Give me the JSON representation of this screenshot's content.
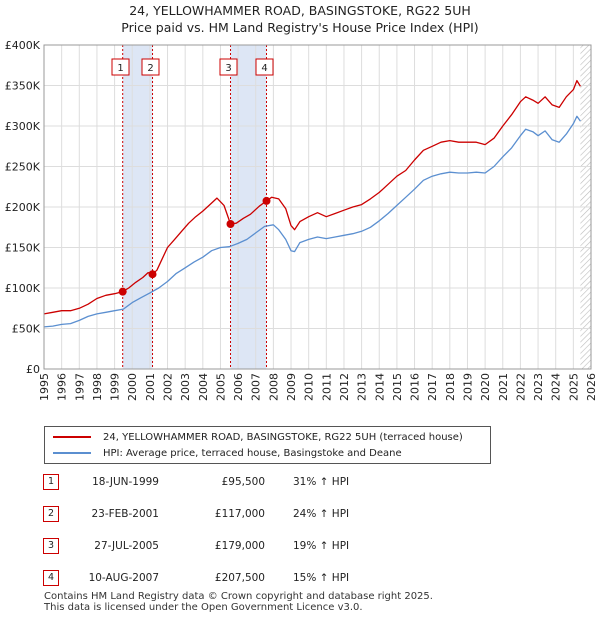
{
  "title": {
    "line1": "24, YELLOWHAMMER ROAD, BASINGSTOKE, RG22 5UH",
    "line2": "Price paid vs. HM Land Registry's House Price Index (HPI)"
  },
  "chart_data": {
    "type": "line",
    "xlim": [
      1995,
      2026
    ],
    "ylim": [
      0,
      400000
    ],
    "y_ticks": [
      0,
      50000,
      100000,
      150000,
      200000,
      250000,
      300000,
      350000,
      400000
    ],
    "y_tick_labels": [
      "£0",
      "£50K",
      "£100K",
      "£150K",
      "£200K",
      "£250K",
      "£300K",
      "£350K",
      "£400K"
    ],
    "x_ticks": [
      1995,
      1996,
      1997,
      1998,
      1999,
      2000,
      2001,
      2002,
      2003,
      2004,
      2005,
      2006,
      2007,
      2008,
      2009,
      2010,
      2011,
      2012,
      2013,
      2014,
      2015,
      2016,
      2017,
      2018,
      2019,
      2020,
      2021,
      2022,
      2023,
      2024,
      2025,
      2026
    ],
    "grid": true,
    "colors": {
      "property": "#cc0000",
      "hpi": "#5b8fd0",
      "shade": "#dde6f5",
      "hatch": "#bbbbbb"
    },
    "series": [
      {
        "name": "24, YELLOWHAMMER ROAD, BASINGSTOKE, RG22 5UH (terraced house)",
        "x": [
          1995.0,
          1995.5,
          1996.0,
          1996.5,
          1997.0,
          1997.5,
          1998.0,
          1998.5,
          1999.0,
          1999.46,
          1999.8,
          2000.2,
          2000.6,
          2000.9,
          2001.15,
          2001.4,
          2001.7,
          2002.0,
          2002.4,
          2002.8,
          2003.2,
          2003.6,
          2004.0,
          2004.4,
          2004.8,
          2005.2,
          2005.57,
          2005.9,
          2006.3,
          2006.7,
          2007.2,
          2007.61,
          2007.9,
          2008.3,
          2008.7,
          2009.0,
          2009.2,
          2009.5,
          2010.0,
          2010.5,
          2011.0,
          2011.5,
          2012.0,
          2012.5,
          2013.0,
          2013.5,
          2014.0,
          2014.5,
          2015.0,
          2015.5,
          2016.0,
          2016.5,
          2017.0,
          2017.5,
          2018.0,
          2018.5,
          2019.0,
          2019.5,
          2020.0,
          2020.5,
          2021.0,
          2021.5,
          2022.0,
          2022.3,
          2022.7,
          2023.0,
          2023.4,
          2023.8,
          2024.2,
          2024.6,
          2025.0,
          2025.2,
          2025.4
        ],
        "y": [
          68000,
          70000,
          72000,
          72000,
          75000,
          80000,
          87000,
          91000,
          93000,
          95500,
          100000,
          107000,
          113000,
          119000,
          117000,
          122000,
          136000,
          150000,
          160000,
          170000,
          180000,
          188000,
          195000,
          203000,
          211000,
          202000,
          179000,
          180000,
          186000,
          191000,
          201000,
          207500,
          212000,
          210000,
          198000,
          177000,
          172000,
          182000,
          188000,
          193000,
          188000,
          192000,
          196000,
          200000,
          203000,
          210000,
          218000,
          228000,
          238000,
          245000,
          258000,
          270000,
          275000,
          280000,
          282000,
          280000,
          280000,
          280000,
          277000,
          285000,
          300000,
          314000,
          330000,
          336000,
          332000,
          328000,
          336000,
          326000,
          323000,
          336000,
          345000,
          356000,
          349000
        ]
      },
      {
        "name": "HPI: Average price, terraced house, Basingstoke and Deane",
        "x": [
          1995.0,
          1995.5,
          1996.0,
          1996.5,
          1997.0,
          1997.5,
          1998.0,
          1998.5,
          1999.0,
          1999.5,
          2000.0,
          2000.5,
          2001.0,
          2001.5,
          2002.0,
          2002.5,
          2003.0,
          2003.5,
          2004.0,
          2004.5,
          2005.0,
          2005.5,
          2006.0,
          2006.5,
          2007.0,
          2007.5,
          2008.0,
          2008.3,
          2008.7,
          2009.0,
          2009.2,
          2009.5,
          2010.0,
          2010.5,
          2011.0,
          2011.5,
          2012.0,
          2012.5,
          2013.0,
          2013.5,
          2014.0,
          2014.5,
          2015.0,
          2015.5,
          2016.0,
          2016.5,
          2017.0,
          2017.5,
          2018.0,
          2018.5,
          2019.0,
          2019.5,
          2020.0,
          2020.5,
          2021.0,
          2021.5,
          2022.0,
          2022.3,
          2022.7,
          2023.0,
          2023.4,
          2023.8,
          2024.2,
          2024.6,
          2025.0,
          2025.2,
          2025.4
        ],
        "y": [
          52000,
          53000,
          55000,
          56000,
          60000,
          65000,
          68000,
          70000,
          72000,
          74000,
          82000,
          88000,
          94000,
          100000,
          108000,
          118000,
          125000,
          132000,
          138000,
          146000,
          150000,
          151000,
          155000,
          160000,
          168000,
          176000,
          178000,
          172000,
          160000,
          146000,
          145000,
          156000,
          160000,
          163000,
          161000,
          163000,
          165000,
          167000,
          170000,
          175000,
          183000,
          192000,
          202000,
          212000,
          222000,
          233000,
          238000,
          241000,
          243000,
          242000,
          242000,
          243000,
          242000,
          250000,
          262000,
          273000,
          288000,
          296000,
          293000,
          288000,
          294000,
          283000,
          280000,
          290000,
          303000,
          312000,
          306000
        ]
      }
    ],
    "transactions": [
      {
        "label": "1",
        "x": 1999.46,
        "y": 95500
      },
      {
        "label": "2",
        "x": 2001.15,
        "y": 117000
      },
      {
        "label": "3",
        "x": 2005.57,
        "y": 179000
      },
      {
        "label": "4",
        "x": 2007.61,
        "y": 207500
      }
    ],
    "shaded_ranges": [
      [
        1999.46,
        2001.15
      ],
      [
        2005.57,
        2007.61
      ]
    ],
    "hatched_from": 2025.4
  },
  "legend": {
    "property_label": "24, YELLOWHAMMER ROAD, BASINGSTOKE, RG22 5UH (terraced house)",
    "hpi_label": "HPI: Average price, terraced house, Basingstoke and Deane"
  },
  "transactions_table": [
    {
      "num": "1",
      "date": "18-JUN-1999",
      "price": "£95,500",
      "hpi": "31% ↑ HPI"
    },
    {
      "num": "2",
      "date": "23-FEB-2001",
      "price": "£117,000",
      "hpi": "24% ↑ HPI"
    },
    {
      "num": "3",
      "date": "27-JUL-2005",
      "price": "£179,000",
      "hpi": "19% ↑ HPI"
    },
    {
      "num": "4",
      "date": "10-AUG-2007",
      "price": "£207,500",
      "hpi": "15% ↑ HPI"
    }
  ],
  "footer": {
    "line1": "Contains HM Land Registry data © Crown copyright and database right 2025.",
    "line2": "This data is licensed under the Open Government Licence v3.0."
  }
}
